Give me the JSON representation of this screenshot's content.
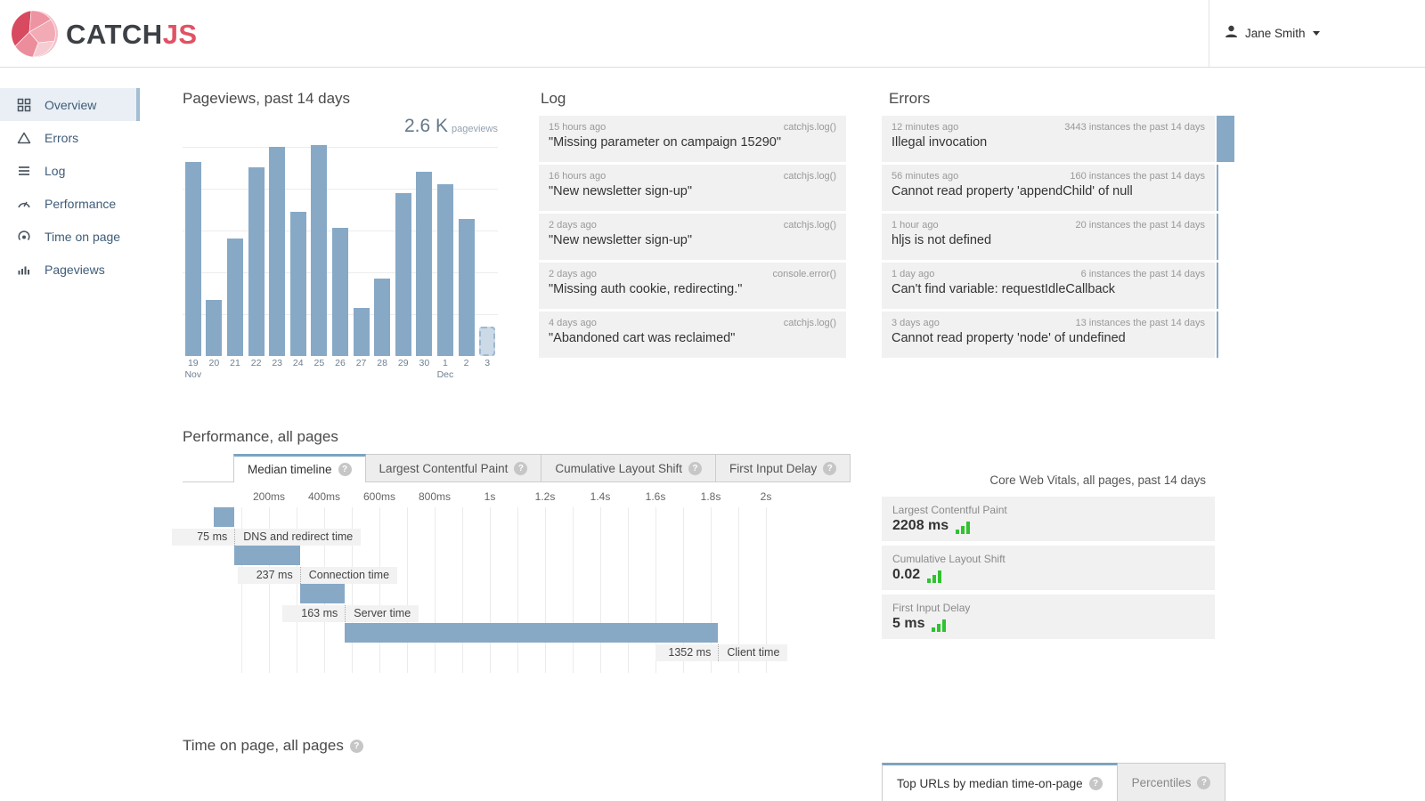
{
  "header": {
    "brand_catch": "CATCH",
    "brand_js": "JS",
    "user_name": "Jane Smith"
  },
  "sidebar": {
    "items": [
      {
        "label": "Overview",
        "icon": "overview-grid-icon",
        "active": true
      },
      {
        "label": "Errors",
        "icon": "errors-triangle-icon",
        "active": false
      },
      {
        "label": "Log",
        "icon": "log-lines-icon",
        "active": false
      },
      {
        "label": "Performance",
        "icon": "performance-gauge-icon",
        "active": false
      },
      {
        "label": "Time on page",
        "icon": "time-on-page-icon",
        "active": false
      },
      {
        "label": "Pageviews",
        "icon": "pageviews-bars-icon",
        "active": false
      }
    ]
  },
  "pageviews": {
    "title": "Pageviews, past 14 days",
    "total": "2.6 K",
    "total_unit": "pageviews",
    "max": 270,
    "bars": [
      {
        "day": "19",
        "month": "Nov",
        "value": 245
      },
      {
        "day": "20",
        "value": 71
      },
      {
        "day": "21",
        "value": 148
      },
      {
        "day": "22",
        "value": 238
      },
      {
        "day": "23",
        "value": 264
      },
      {
        "day": "24",
        "value": 182
      },
      {
        "day": "25",
        "value": 267
      },
      {
        "day": "26",
        "value": 162
      },
      {
        "day": "27",
        "value": 61
      },
      {
        "day": "28",
        "value": 98
      },
      {
        "day": "29",
        "value": 206
      },
      {
        "day": "30",
        "value": 233
      },
      {
        "day": "1",
        "month": "Dec",
        "value": 217
      },
      {
        "day": "2",
        "value": 173
      },
      {
        "day": "3",
        "value": 37,
        "partial": true
      }
    ]
  },
  "log": {
    "title": "Log",
    "entries": [
      {
        "time": "15 hours ago",
        "source": "catchjs.log()",
        "message": "\"Missing parameter on campaign 15290\""
      },
      {
        "time": "16 hours ago",
        "source": "catchjs.log()",
        "message": "\"New newsletter sign-up\""
      },
      {
        "time": "2 days ago",
        "source": "catchjs.log()",
        "message": "\"New newsletter sign-up\""
      },
      {
        "time": "2 days ago",
        "source": "console.error()",
        "message": "\"Missing auth cookie, redirecting.\""
      },
      {
        "time": "4 days ago",
        "source": "catchjs.log()",
        "message": "\"Abandoned cart was reclaimed\""
      }
    ]
  },
  "errors": {
    "title": "Errors",
    "entries": [
      {
        "time": "12 minutes ago",
        "instances": 3443,
        "instances_label": "3443 instances the past 14 days",
        "message": "Illegal invocation"
      },
      {
        "time": "56 minutes ago",
        "instances": 160,
        "instances_label": "160 instances the past 14 days",
        "message": "Cannot read property 'appendChild' of null"
      },
      {
        "time": "1 hour ago",
        "instances": 20,
        "instances_label": "20 instances the past 14 days",
        "message": "hljs is not defined"
      },
      {
        "time": "1 day ago",
        "instances": 6,
        "instances_label": "6 instances the past 14 days",
        "message": "Can't find variable: requestIdleCallback"
      },
      {
        "time": "3 days ago",
        "instances": 13,
        "instances_label": "13 instances the past 14 days",
        "message": "Cannot read property 'node' of undefined"
      }
    ]
  },
  "performance": {
    "title": "Performance, all pages",
    "tabs": [
      {
        "label": "Median timeline",
        "active": true,
        "help": true
      },
      {
        "label": "Largest Contentful Paint",
        "active": false,
        "help": true
      },
      {
        "label": "Cumulative Layout Shift",
        "active": false,
        "help": true
      },
      {
        "label": "First Input Delay",
        "active": false,
        "help": true
      }
    ],
    "axis_ticks": [
      {
        "ms": 200,
        "label": "200ms"
      },
      {
        "ms": 400,
        "label": "400ms"
      },
      {
        "ms": 600,
        "label": "600ms"
      },
      {
        "ms": 800,
        "label": "800ms"
      },
      {
        "ms": 1000,
        "label": "1s"
      },
      {
        "ms": 1200,
        "label": "1.2s"
      },
      {
        "ms": 1400,
        "label": "1.4s"
      },
      {
        "ms": 1600,
        "label": "1.6s"
      },
      {
        "ms": 1800,
        "label": "1.8s"
      },
      {
        "ms": 2000,
        "label": "2s"
      }
    ],
    "waterfall": [
      {
        "value_label": "75 ms",
        "name": "DNS and redirect time",
        "start_ms": 0,
        "duration_ms": 75
      },
      {
        "value_label": "237 ms",
        "name": "Connection time",
        "start_ms": 75,
        "duration_ms": 237
      },
      {
        "value_label": "163 ms",
        "name": "Server time",
        "start_ms": 312,
        "duration_ms": 163
      },
      {
        "value_label": "1352 ms",
        "name": "Client time",
        "start_ms": 475,
        "duration_ms": 1352
      }
    ]
  },
  "core_web_vitals": {
    "title": "Core Web Vitals, all pages, past 14 days",
    "metrics": [
      {
        "label": "Largest Contentful Paint",
        "value": "2208 ms"
      },
      {
        "label": "Cumulative Layout Shift",
        "value": "0.02"
      },
      {
        "label": "First Input Delay",
        "value": "5 ms"
      }
    ]
  },
  "time_on_page": {
    "title": "Time on page, all pages",
    "help": true,
    "tabs": [
      {
        "label": "Top URLs by median time-on-page",
        "active": true,
        "help": true
      },
      {
        "label": "Percentiles",
        "active": false,
        "help": true
      }
    ]
  },
  "colors": {
    "bar_blue": "#87a9c6",
    "partial_bar": "#ccd9e6",
    "active_tab_border": "#7da3c0",
    "vitals_green": "#2fc32f",
    "brand_red": "#e05263",
    "card_bg": "#f1f1f1",
    "sidebar_active_bg": "#e9eff5"
  },
  "chart_data": [
    {
      "type": "bar",
      "title": "Pageviews, past 14 days",
      "categories": [
        "Nov 19",
        "Nov 20",
        "Nov 21",
        "Nov 22",
        "Nov 23",
        "Nov 24",
        "Nov 25",
        "Nov 26",
        "Nov 27",
        "Nov 28",
        "Nov 29",
        "Nov 30",
        "Dec 1",
        "Dec 2",
        "Dec 3"
      ],
      "values": [
        245,
        71,
        148,
        238,
        264,
        182,
        267,
        162,
        61,
        98,
        206,
        233,
        217,
        173,
        37
      ],
      "ylabel": "pageviews",
      "ylim": [
        0,
        270
      ],
      "grid": true,
      "annotation": "2.6 K pageviews total; last bar (Dec 3) is partial/in-progress (dashed)"
    },
    {
      "type": "bar",
      "orientation": "horizontal-waterfall",
      "title": "Median timeline",
      "x_unit": "ms",
      "xlim": [
        0,
        2100
      ],
      "segments": [
        {
          "name": "DNS and redirect time",
          "start": 0,
          "duration": 75
        },
        {
          "name": "Connection time",
          "start": 75,
          "duration": 237
        },
        {
          "name": "Server time",
          "start": 312,
          "duration": 163
        },
        {
          "name": "Client time",
          "start": 475,
          "duration": 1352
        }
      ]
    }
  ]
}
